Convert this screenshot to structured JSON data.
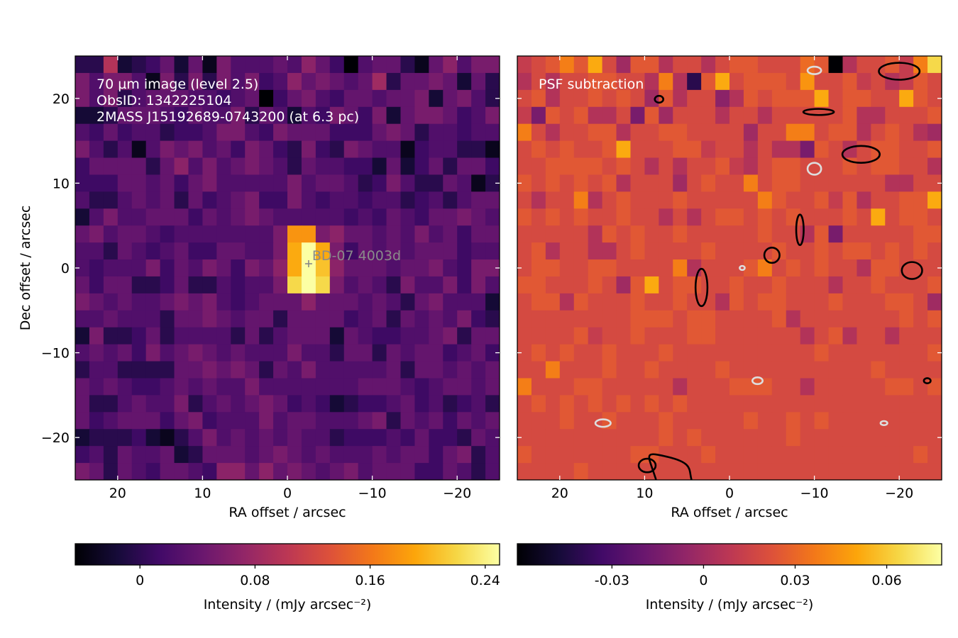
{
  "chart_data": [
    {
      "type": "heatmap",
      "overlay": [
        "70 µm image (level 2.5)",
        "ObsID: 1342225104",
        "2MASS J15192689-0743200 (at 6.3 pc)"
      ],
      "xlabel": "RA offset / arcsec",
      "ylabel": "Dec offset / arcsec",
      "xlim": [
        25,
        -25
      ],
      "ylim": [
        -25,
        25
      ],
      "xticks": [
        20,
        10,
        0,
        -10,
        -20
      ],
      "xtick_labels": [
        "20",
        "10",
        "0",
        "−10",
        "−20"
      ],
      "yticks": [
        20,
        10,
        0,
        -10,
        -20
      ],
      "ytick_labels": [
        "20",
        "10",
        "0",
        "−10",
        "−20"
      ],
      "grid": "30x25",
      "colormap": "inferno",
      "pixels": [
        "ddkcdegcgbhfffgfigeafggdbgifhhge",
        "hfhhfbhdhdhfhefighgfgjdgghgcgdcd",
        "hfhdfgggffefgaeghfeggfgghcghfdgd",
        "ccdgggfegffhdgfcfehgehcghhgefhed",
        "fegeffdeefhhfehgggeeeghgdffeffgg",
        "hfdfbfhghfgehgedhedhgffbeffddbhe",
        "eggggdgifhfghgfdgffeecgcegdggeda",
        "eeeggfgeghfffffhfggfdehfddgfbdah",
        "fddfgfgdgefgheehfeffeffdefdfgggh",
        "cfhffgggegfghgfffffefegfegghgfgi",
        "ghfggfefffffffhqqhiggfgfhfgegghf",
        "ffdgfefgeeggffhrvrhegfgfgggeffeg",
        "fefffhegfhgehgirvsigggfgghfehhfh",
        "geggddegddfeffhtvthfgfdhffhehfdf",
        "hgfgffghghfefgggigggfgfdghfffcgh",
        "ffgfffdgghgfggdggggefgdgfgfhedgf",
        "chddegdffffdgdfgggcgfeeffghdggcg",
        "fgfgehfghgfgfffhffdggdgfggefgeeh",
        "dffddddgghghgdgfhfffffgdggfgfgfe",
        "gfgfeefgfgffhfffffffgggfefggfgff",
        "gddfgffhdfgfghgefecdeefgefdefdge",
        "gefgggeghefffhfggfffghdgfgegfggf",
        "cdddecbdfhfgfgfgffdeeefegeedgfgg",
        "efdgffgcdgggfghgfgfffgfggeghdfgh",
        "hgdgfeggfeiigighgfghfgggeegfdfeh"
      ],
      "marker": {
        "x": -2.5,
        "y": 0.5,
        "label": "BD-07  4003d"
      },
      "colorbar": {
        "label": "Intensity / (mJy arcsec⁻²)",
        "min": -0.045,
        "max": 0.25,
        "ticks": [
          0,
          0.08,
          0.16,
          0.24
        ],
        "tick_labels": [
          "0",
          "0.08",
          "0.16",
          "0.24"
        ]
      }
    },
    {
      "type": "heatmap",
      "overlay": [
        "PSF subtraction"
      ],
      "xlabel": "RA offset / arcsec",
      "xlim": [
        25,
        -25
      ],
      "ylim": [
        -25,
        25
      ],
      "xticks": [
        20,
        10,
        0,
        -10,
        -20
      ],
      "xtick_labels": [
        "20",
        "10",
        "0",
        "−10",
        "−20"
      ],
      "grid": "30x25",
      "colormap": "inferno",
      "pixels": [
        "lmnpnrmjnnkmmkmnnmmmonakmmnlptmp",
        "kmkmmnnmmkpkdnrmnnnmqmmnlmklnmmk",
        "mnkmmnmnmjnkmmiknmnnnrmnnmmrnmmm",
        "lhnmnkkmhnjmmmkmmkmmmmmnkkmmmnnk",
        "pmkmmnnkmmnnmmmmjmmppmnnkmnmkjkm",
        "mnmnmmnrmmmnnlmmkmkkhnmkmnnmmnnk",
        "mmnnnnmnmkmkmmnlkmnnmmmnmnnmmkmm",
        "nmnmnmnkmmmjmnmmpmnnmmmmmmkkmmkn",
        "mkmmpkmnmmmnmmmmmpnmmnlnkmmnnrmm",
        "nmnmnmmnmmkmkmnnmnmnmmmnmrmnnmmm",
        "mmmmmknmnmmnmmmmmnmmknhmmmmmnnlm",
        "mnkmmkkmnmmmmnmmmmnmmnmnnmnmnmmm",
        "mnnmmnnmmmmpkmmmnpmnmnmmknnmmmnm",
        "nnmmmnmjnrmnnmmnmmnmmmkmmnmmmnpm",
        "mnnknmmmnmmnmmknmnnmmmnmmmnnmjkm",
        "mmmmmmmmnnnmnnmmmmnkmmmmmmmnmnmk",
        "mmmmnlmmnmmmnnmmmmmmkmnkmmkmmmmn",
        "mnmnmmnmmmnmmmmmmmmmmnmmmmmmmnmm",
        "mmpmmmnmmnmmmmnmmmmmmmmmmnmmmmmn",
        "pmmmnnmmmmmkmmmnnnmmkmmmmmnnmnmm",
        "mnmnmnmnmnmnmmmmmmmmmmmmmmmmmmmm",
        "mmmnmmnmmmnmmmmmnmmnmnmmmmmmmmmm",
        "mmmmmmmmmmnmnmmmmmmnmmmmmmmmmmmm",
        "nmmmmmmmnnmmmnmmmmmmmmmmmmmmnmmm",
        "mmmmnmmmmmmmmmmmmmmmmmmmmmmmmmmm"
      ],
      "colorbar": {
        "label": "Intensity / (mJy arcsec⁻²)",
        "min": -0.061,
        "max": 0.078,
        "ticks": [
          -0.03,
          0,
          0.03,
          0.06
        ],
        "tick_labels": [
          "-0.03",
          "0",
          "0.03",
          "0.06"
        ]
      }
    }
  ]
}
